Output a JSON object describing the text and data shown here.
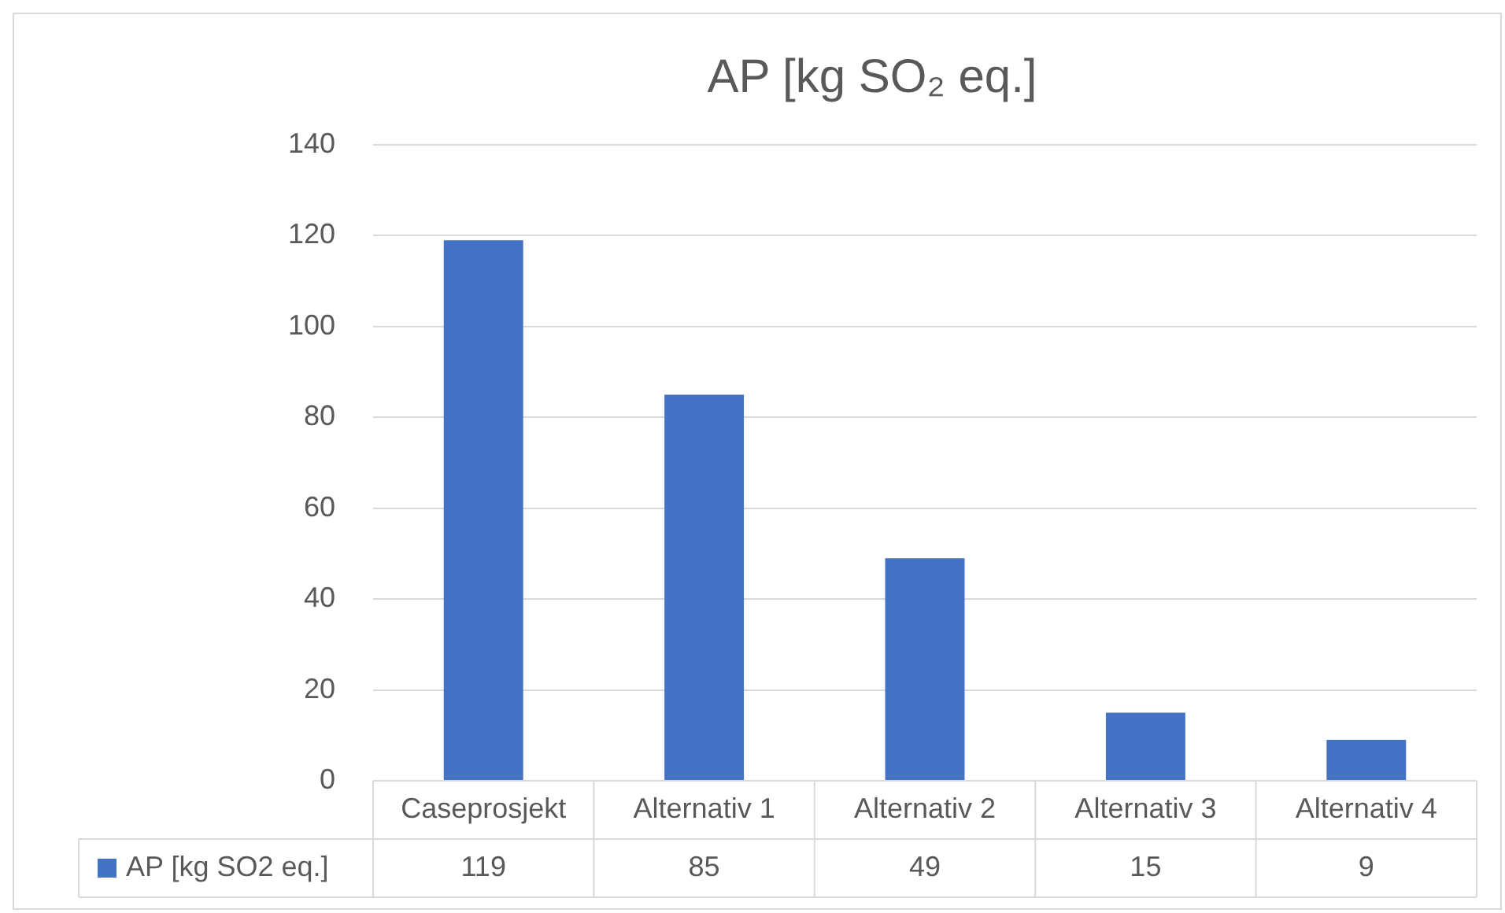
{
  "chart_data": {
    "type": "bar",
    "title": "AP [kg SO₂ eq.]",
    "categories": [
      "Caseprosjekt",
      "Alternativ 1",
      "Alternativ 2",
      "Alternativ 3",
      "Alternativ 4"
    ],
    "series": [
      {
        "name": "AP [kg SO2 eq.]",
        "color": "#4472c4",
        "values": [
          119,
          85,
          49,
          15,
          9
        ]
      }
    ],
    "ylim": [
      0,
      140
    ],
    "yticks": [
      0,
      20,
      40,
      60,
      80,
      100,
      120,
      140
    ],
    "grid": "y",
    "legend": "bottom left",
    "data_labels": true
  }
}
